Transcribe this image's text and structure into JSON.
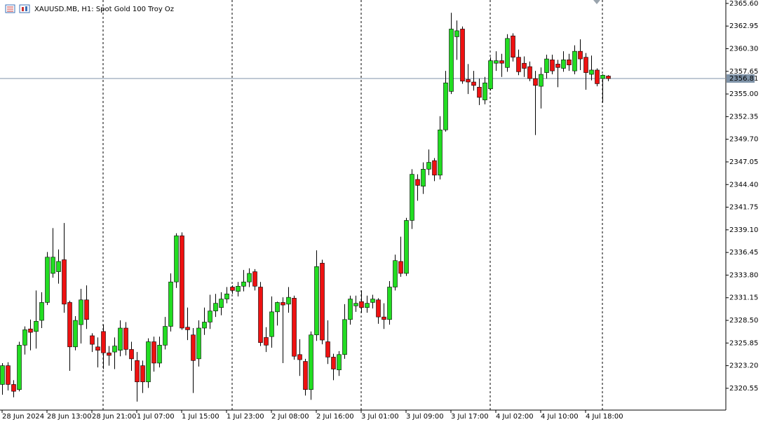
{
  "chart_data": {
    "type": "candlestick",
    "title": "XAUUSD.MB, H1:  Spot Gold 100 Troy Oz",
    "up_color": "#22dd22",
    "down_color": "#ee1111",
    "last_price": 2356.81,
    "ylim": [
      2318.0,
      2366.0
    ],
    "yticks": [
      {
        "value": 2365.6,
        "label": "2365.60"
      },
      2362.95,
      {
        "value": 2360.3,
        "label": "2360.30"
      },
      2357.65,
      {
        "value": 2355.0,
        "label": "2355.00"
      },
      2352.35,
      {
        "value": 2349.7,
        "label": "2349.70"
      },
      2347.05,
      {
        "value": 2344.4,
        "label": "2344.40"
      },
      2341.75,
      {
        "value": 2339.1,
        "label": "2339.10"
      },
      2336.45,
      {
        "value": 2333.8,
        "label": "2333.80"
      },
      2331.15,
      {
        "value": 2328.5,
        "label": "2328.50"
      },
      2325.85,
      {
        "value": 2323.2,
        "label": "2323.20"
      },
      2320.55
    ],
    "categories": [
      "28 Jun 2024",
      null,
      null,
      null,
      null,
      null,
      null,
      null,
      "28 Jun 13:00",
      null,
      null,
      null,
      null,
      null,
      null,
      null,
      "28 Jun 21:00",
      null,
      null,
      null,
      null,
      null,
      null,
      null,
      "1 Jul 07:00",
      null,
      null,
      null,
      null,
      null,
      null,
      null,
      "1 Jul 15:00",
      null,
      null,
      null,
      null,
      null,
      null,
      null,
      "1 Jul 23:00",
      null,
      null,
      null,
      null,
      null,
      null,
      null,
      "2 Jul 08:00",
      null,
      null,
      null,
      null,
      null,
      null,
      null,
      "2 Jul 16:00",
      null,
      null,
      null,
      null,
      null,
      null,
      null,
      "3 Jul 01:00",
      null,
      null,
      null,
      null,
      null,
      null,
      null,
      "3 Jul 09:00",
      null,
      null,
      null,
      null,
      null,
      null,
      null,
      "3 Jul 17:00",
      null,
      null,
      null,
      null,
      null,
      null,
      null,
      "4 Jul 02:00",
      null,
      null,
      null,
      null,
      null,
      null,
      null,
      "4 Jul 10:00",
      null,
      null,
      null,
      null,
      null,
      null,
      null,
      "4 Jul 18:00",
      null,
      null,
      null,
      null
    ],
    "open": [
      2321.0,
      2323.2,
      2321.0,
      2320.4,
      2325.6,
      2327.5,
      2327.2,
      2328.5,
      2330.6,
      2334.0,
      2334.2,
      2335.6,
      2330.6,
      2325.4,
      2328.0,
      2330.9,
      2326.7,
      2325.4,
      2327.2,
      2324.7,
      2324.8,
      2325.0,
      2327.6,
      2325.1,
      2323.8,
      2323.2,
      2321.3,
      2326.0,
      2323.5,
      2325.6,
      2327.8,
      2333.0,
      2338.4,
      2327.7,
      2326.8,
      2324.0,
      2327.6,
      2328.3,
      2329.6,
      2330.0,
      2331.0,
      2332.4,
      2331.9,
      2332.5,
      2333.0,
      2334.2,
      2332.4,
      2326.5,
      2326.6,
      2329.5,
      2330.6,
      2330.4,
      2331.1,
      2324.5,
      2323.7,
      2320.4,
      2326.8,
      2335.2,
      2326.0,
      2324.2,
      2322.7,
      2324.5,
      2328.6,
      2330.2,
      2330.7,
      2330.0,
      2330.6,
      2330.9,
      2328.9,
      2328.6,
      2332.4,
      2335.4,
      2334.0,
      2340.2,
      2345.0,
      2344.2,
      2346.2,
      2347.2,
      2345.5,
      2350.8,
      2355.3,
      2361.7,
      2362.6,
      2356.7,
      2356.4,
      2355.8,
      2354.3,
      2355.6,
      2358.6,
      2358.9,
      2358.1,
      2361.8,
      2359.3,
      2358.6,
      2358.2,
      2356.8,
      2355.9,
      2357.5,
      2359.0,
      2358.5,
      2358.0,
      2359.0,
      2357.7,
      2360.0,
      2359.3,
      2357.3,
      2357.8,
      2356.8,
      2357.1
    ],
    "high": [
      2323.5,
      2323.6,
      2321.5,
      2326.0,
      2327.8,
      2328.6,
      2332.0,
      2331.8,
      2336.5,
      2339.3,
      2336.8,
      2339.9,
      2330.8,
      2329.0,
      2332.2,
      2332.6,
      2327.0,
      2326.5,
      2328.0,
      2325.5,
      2326.5,
      2328.5,
      2328.3,
      2326.0,
      2324.8,
      2323.8,
      2326.4,
      2326.6,
      2326.6,
      2328.9,
      2334.0,
      2338.7,
      2338.8,
      2330.0,
      2327.6,
      2328.5,
      2330.0,
      2331.5,
      2331.6,
      2331.8,
      2332.4,
      2332.6,
      2333.0,
      2334.4,
      2334.6,
      2334.5,
      2333.0,
      2327.7,
      2331.3,
      2330.7,
      2331.2,
      2332.4,
      2331.4,
      2326.3,
      2324.0,
      2327.2,
      2336.7,
      2335.6,
      2328.5,
      2324.6,
      2324.9,
      2330.4,
      2331.4,
      2331.4,
      2332.0,
      2331.4,
      2331.5,
      2331.1,
      2330.5,
      2333.1,
      2336.2,
      2338.3,
      2340.5,
      2346.2,
      2345.6,
      2347.0,
      2348.5,
      2347.5,
      2352.4,
      2357.7,
      2364.5,
      2363.6,
      2362.9,
      2358.5,
      2357.7,
      2356.8,
      2357.0,
      2359.3,
      2360.0,
      2359.7,
      2362.0,
      2362.1,
      2360.2,
      2359.4,
      2358.8,
      2357.7,
      2358.1,
      2359.6,
      2359.6,
      2359.0,
      2360.0,
      2359.7,
      2360.7,
      2361.4,
      2359.8,
      2359.5,
      2358.0,
      2357.3,
      2357.2
    ],
    "low": [
      2319.8,
      2320.3,
      2319.5,
      2320.2,
      2324.5,
      2325.0,
      2325.2,
      2327.6,
      2330.3,
      2333.5,
      2332.8,
      2329.4,
      2322.6,
      2325.0,
      2325.8,
      2327.5,
      2324.8,
      2323.0,
      2322.8,
      2323.2,
      2322.8,
      2324.3,
      2324.4,
      2322.6,
      2319.0,
      2320.0,
      2320.6,
      2322.5,
      2323.0,
      2325.1,
      2327.2,
      2332.3,
      2327.4,
      2326.2,
      2320.0,
      2323.1,
      2326.8,
      2327.5,
      2328.9,
      2329.1,
      2330.5,
      2331.6,
      2331.3,
      2331.9,
      2332.4,
      2332.0,
      2325.5,
      2324.8,
      2325.3,
      2327.9,
      2323.5,
      2329.4,
      2323.9,
      2322.0,
      2319.7,
      2319.2,
      2326.1,
      2325.7,
      2323.4,
      2321.5,
      2322.0,
      2324.0,
      2328.0,
      2329.5,
      2329.4,
      2329.4,
      2329.9,
      2328.1,
      2327.5,
      2328.0,
      2332.0,
      2333.6,
      2333.7,
      2339.2,
      2342.5,
      2343.3,
      2345.5,
      2344.8,
      2345.0,
      2350.6,
      2355.0,
      2359.0,
      2356.2,
      2355.0,
      2355.4,
      2353.7,
      2353.8,
      2355.4,
      2357.7,
      2357.0,
      2357.6,
      2358.8,
      2357.2,
      2357.0,
      2356.5,
      2350.2,
      2353.3,
      2356.8,
      2357.3,
      2355.8,
      2357.6,
      2357.7,
      2357.3,
      2357.8,
      2355.5,
      2356.6,
      2355.9,
      2354.0,
      2356.5
    ],
    "close": [
      2323.2,
      2321.0,
      2320.2,
      2325.6,
      2327.4,
      2327.1,
      2328.4,
      2330.6,
      2335.9,
      2335.9,
      2335.4,
      2330.4,
      2325.4,
      2328.5,
      2330.9,
      2328.6,
      2325.7,
      2325.0,
      2324.7,
      2324.4,
      2325.5,
      2327.6,
      2325.1,
      2324.0,
      2321.3,
      2321.3,
      2326.0,
      2323.5,
      2325.6,
      2327.8,
      2333.0,
      2338.4,
      2327.6,
      2327.4,
      2323.8,
      2327.6,
      2328.3,
      2329.6,
      2330.5,
      2331.0,
      2331.6,
      2332.0,
      2332.5,
      2333.0,
      2334.0,
      2332.5,
      2325.9,
      2325.6,
      2329.5,
      2330.6,
      2330.3,
      2331.2,
      2324.3,
      2323.9,
      2320.4,
      2326.8,
      2334.8,
      2326.2,
      2324.2,
      2322.8,
      2324.5,
      2328.6,
      2331.0,
      2330.5,
      2330.0,
      2330.5,
      2331.0,
      2328.9,
      2328.6,
      2332.4,
      2335.5,
      2334.0,
      2340.2,
      2345.6,
      2344.3,
      2346.2,
      2347.0,
      2345.5,
      2350.8,
      2356.3,
      2362.6,
      2362.4,
      2356.5,
      2356.4,
      2356.0,
      2354.6,
      2356.3,
      2358.9,
      2358.9,
      2358.6,
      2361.5,
      2359.3,
      2357.6,
      2358.0,
      2356.8,
      2356.0,
      2357.3,
      2359.1,
      2357.7,
      2358.1,
      2359.0,
      2358.4,
      2360.0,
      2359.1,
      2357.5,
      2357.8,
      2356.2,
      2357.2,
      2356.8
    ]
  }
}
